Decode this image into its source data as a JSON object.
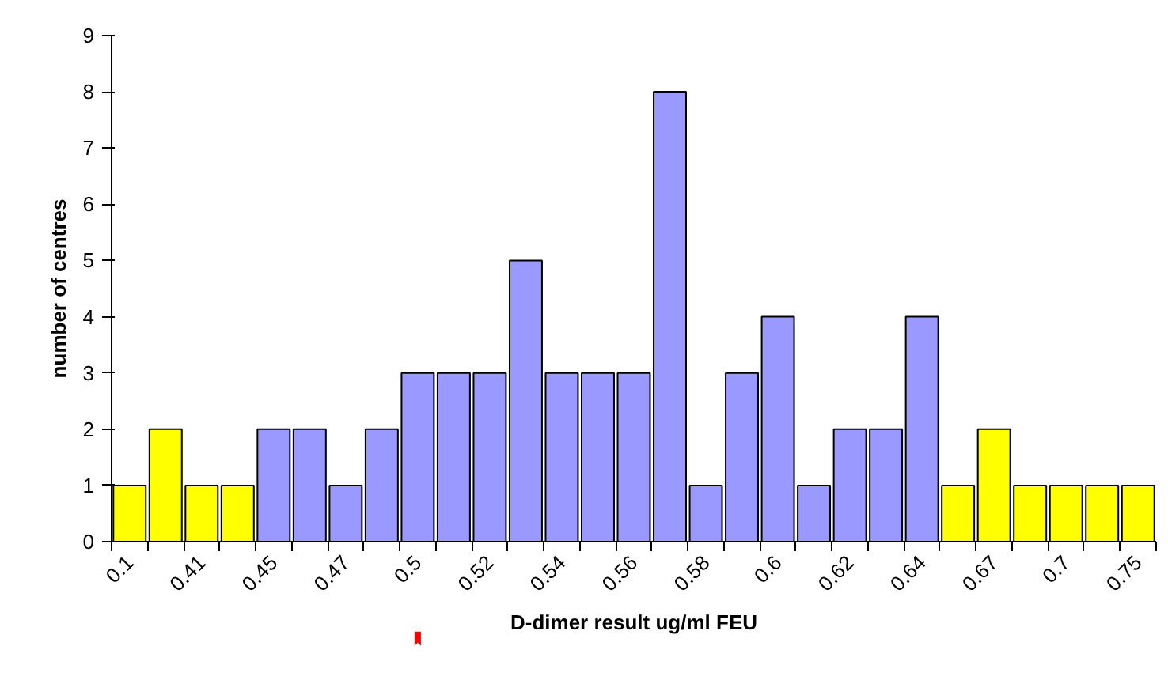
{
  "chart_data": {
    "type": "bar",
    "xlabel": "D-dimer result ug/ml FEU",
    "ylabel": "number of centres",
    "categories": [
      "0.1",
      null,
      "0.41",
      null,
      "0.45",
      null,
      "0.47",
      null,
      "0.5",
      null,
      "0.52",
      null,
      "0.54",
      null,
      "0.56",
      null,
      "0.58",
      null,
      "0.6",
      null,
      "0.62",
      null,
      "0.64",
      null,
      "0.67",
      null,
      "0.7",
      null,
      "0.75"
    ],
    "values": [
      1,
      2,
      1,
      1,
      2,
      2,
      1,
      2,
      3,
      3,
      3,
      5,
      3,
      3,
      3,
      8,
      1,
      3,
      4,
      1,
      2,
      2,
      4,
      1,
      2,
      1,
      1,
      1,
      1
    ],
    "colors": [
      "#ffff00",
      "#ffff00",
      "#ffff00",
      "#ffff00",
      "#9999ff",
      "#9999ff",
      "#9999ff",
      "#9999ff",
      "#9999ff",
      "#9999ff",
      "#9999ff",
      "#9999ff",
      "#9999ff",
      "#9999ff",
      "#9999ff",
      "#9999ff",
      "#9999ff",
      "#9999ff",
      "#9999ff",
      "#9999ff",
      "#9999ff",
      "#9999ff",
      "#9999ff",
      "#ffff00",
      "#ffff00",
      "#ffff00",
      "#ffff00",
      "#ffff00",
      "#ffff00"
    ],
    "ylim": [
      0,
      9
    ],
    "yticks": [
      0,
      1,
      2,
      3,
      4,
      5,
      6,
      7,
      8,
      9
    ],
    "grid": false
  }
}
